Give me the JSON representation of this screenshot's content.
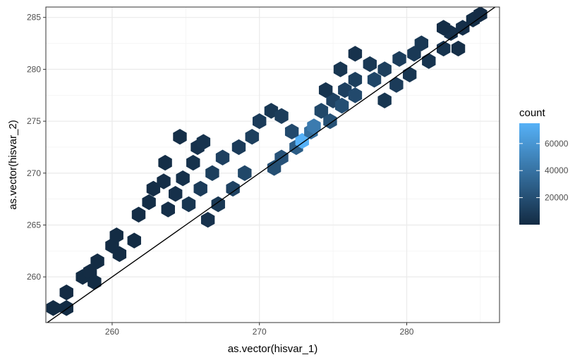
{
  "chart_data": {
    "type": "hexbin",
    "xlabel": "as.vector(hisvar_1)",
    "ylabel": "as.vector(hisvar_2)",
    "xlim": [
      255.5,
      286.3
    ],
    "ylim": [
      255.6,
      286.0
    ],
    "x_ticks": [
      260,
      270,
      280
    ],
    "y_ticks": [
      260,
      265,
      270,
      275,
      280,
      285
    ],
    "reference_line": {
      "intercept": 0,
      "slope": 1
    },
    "grid": true,
    "legend": {
      "title": "count",
      "position": "right",
      "breaks": [
        20000,
        40000,
        60000
      ],
      "range": [
        1,
        75000
      ],
      "low_color": "#132b43",
      "high_color": "#56b1f7"
    },
    "bins": [
      [
        256.0,
        257.0,
        400
      ],
      [
        256.9,
        257.0,
        300
      ],
      [
        256.9,
        258.5,
        250
      ],
      [
        258.0,
        260.0,
        500
      ],
      [
        258.5,
        260.5,
        600
      ],
      [
        259.0,
        261.5,
        400
      ],
      [
        258.8,
        259.5,
        300
      ],
      [
        260.0,
        263.0,
        400
      ],
      [
        260.3,
        264.0,
        500
      ],
      [
        261.5,
        263.5,
        500
      ],
      [
        260.5,
        262.2,
        300
      ],
      [
        261.8,
        266.0,
        1200
      ],
      [
        262.5,
        267.2,
        1500
      ],
      [
        263.5,
        269.2,
        1700
      ],
      [
        263.6,
        271.0,
        1600
      ],
      [
        262.8,
        268.5,
        1800
      ],
      [
        263.8,
        266.5,
        2500
      ],
      [
        264.3,
        268.0,
        3000
      ],
      [
        264.8,
        269.5,
        3200
      ],
      [
        265.5,
        271.0,
        3800
      ],
      [
        265.8,
        272.5,
        3600
      ],
      [
        264.6,
        273.5,
        2200
      ],
      [
        266.2,
        273.0,
        4500
      ],
      [
        265.2,
        267.0,
        6000
      ],
      [
        266.0,
        268.5,
        9000
      ],
      [
        266.8,
        270.0,
        11000
      ],
      [
        267.5,
        271.5,
        12000
      ],
      [
        266.5,
        265.5,
        4000
      ],
      [
        267.2,
        267.0,
        7000
      ],
      [
        268.2,
        268.5,
        13000
      ],
      [
        269.0,
        270.0,
        16000
      ],
      [
        268.6,
        272.5,
        9000
      ],
      [
        269.5,
        273.5,
        11000
      ],
      [
        270.0,
        275.0,
        9000
      ],
      [
        270.8,
        276.0,
        7000
      ],
      [
        271.0,
        270.5,
        20000
      ],
      [
        271.5,
        271.5,
        22000
      ],
      [
        272.5,
        272.5,
        28000
      ],
      [
        272.9,
        273.1,
        75000
      ],
      [
        273.5,
        274.0,
        38000
      ],
      [
        273.7,
        274.5,
        45000
      ],
      [
        272.2,
        274.0,
        17000
      ],
      [
        271.5,
        275.5,
        10000
      ],
      [
        274.2,
        276.0,
        16000
      ],
      [
        275.0,
        277.0,
        13000
      ],
      [
        275.8,
        278.0,
        12000
      ],
      [
        276.5,
        279.0,
        11000
      ],
      [
        274.8,
        275.0,
        21000
      ],
      [
        275.6,
        276.5,
        20000
      ],
      [
        276.5,
        277.5,
        17000
      ],
      [
        277.8,
        279.0,
        15000
      ],
      [
        274.5,
        278.0,
        5000
      ],
      [
        275.5,
        280.0,
        6000
      ],
      [
        276.5,
        281.5,
        4000
      ],
      [
        277.5,
        280.5,
        7000
      ],
      [
        278.5,
        280.0,
        11000
      ],
      [
        279.5,
        281.0,
        10000
      ],
      [
        280.5,
        281.5,
        8000
      ],
      [
        281.0,
        282.5,
        7000
      ],
      [
        279.3,
        278.5,
        9000
      ],
      [
        280.2,
        279.5,
        6000
      ],
      [
        281.5,
        280.8,
        5000
      ],
      [
        282.5,
        282.0,
        5000
      ],
      [
        283.0,
        283.5,
        3000
      ],
      [
        283.8,
        284.0,
        2500
      ],
      [
        284.5,
        284.8,
        1500
      ],
      [
        285.0,
        285.3,
        800
      ],
      [
        283.5,
        282.0,
        2000
      ],
      [
        282.5,
        284.0,
        1200
      ],
      [
        278.5,
        277.0,
        6000
      ]
    ]
  }
}
